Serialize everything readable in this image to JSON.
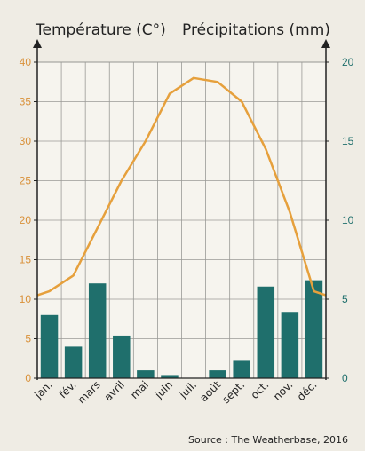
{
  "chart_data": {
    "type": "bar+line",
    "title": "",
    "left_axis_label": "Température (C°)",
    "right_axis_label": "Précipitations (mm)",
    "categories": [
      "jan.",
      "fév.",
      "mars",
      "avril",
      "mai",
      "juin",
      "juil.",
      "août",
      "sept.",
      "oct.",
      "nov.",
      "déc."
    ],
    "temperature": [
      11,
      13,
      19,
      25,
      30,
      36,
      38,
      37.5,
      35,
      29,
      21,
      11
    ],
    "precipitation": [
      4,
      2,
      6,
      2.7,
      0.5,
      0.2,
      0,
      0.5,
      1.1,
      5.8,
      4.2,
      6.2
    ],
    "temperature_range": [
      0,
      40
    ],
    "precipitation_range": [
      0,
      20
    ],
    "temperature_ticks": [
      0,
      5,
      10,
      15,
      20,
      25,
      30,
      35,
      40
    ],
    "precipitation_ticks": [
      0,
      5,
      10,
      15,
      20
    ],
    "grid": true,
    "bar_color": "#1f6f6c",
    "line_color": "#e6a03c",
    "source": "Source : The Weatherbase, 2016"
  }
}
